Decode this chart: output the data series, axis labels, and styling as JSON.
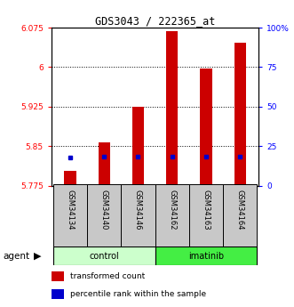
{
  "title": "GDS3043 / 222365_at",
  "samples": [
    "GSM34134",
    "GSM34140",
    "GSM34146",
    "GSM34162",
    "GSM34163",
    "GSM34164"
  ],
  "groups": [
    "control",
    "control",
    "control",
    "imatinib",
    "imatinib",
    "imatinib"
  ],
  "transformed_counts": [
    5.803,
    5.857,
    5.925,
    6.068,
    5.997,
    6.047
  ],
  "percentile_values": [
    5.828,
    5.83,
    5.83,
    5.83,
    5.83,
    5.83
  ],
  "ylim_left": [
    5.775,
    6.075
  ],
  "ylim_right": [
    0,
    100
  ],
  "yticks_left": [
    5.775,
    5.85,
    5.925,
    6.0,
    6.075
  ],
  "yticks_right": [
    0,
    25,
    50,
    75,
    100
  ],
  "ytick_labels_left": [
    "5.775",
    "5.85",
    "5.925",
    "6",
    "6.075"
  ],
  "ytick_labels_right": [
    "0",
    "25",
    "50",
    "75",
    "100%"
  ],
  "bar_bottom": 5.775,
  "bar_color": "#cc0000",
  "percentile_color": "#0000cc",
  "control_color": "#ccffcc",
  "imatinib_color": "#44ee44",
  "xlabel_bg": "#c8c8c8",
  "group_label": "agent",
  "legend_items": [
    "transformed count",
    "percentile rank within the sample"
  ],
  "bar_width": 0.35
}
